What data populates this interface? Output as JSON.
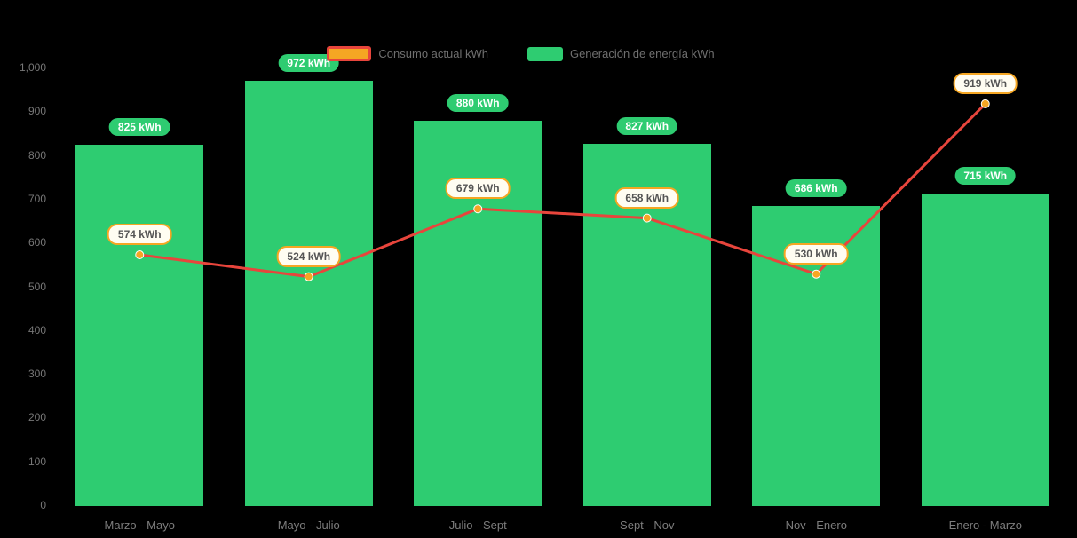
{
  "chart_data": {
    "type": "bar+line",
    "title": "",
    "categories": [
      "Marzo - Mayo",
      "Mayo - Julio",
      "Julio - Sept",
      "Sept - Nov",
      "Nov - Enero",
      "Enero - Marzo"
    ],
    "series": [
      {
        "name": "Consumo actual kWh",
        "type": "line",
        "values": [
          574,
          524,
          679,
          658,
          530,
          919
        ],
        "color": "#e8453c",
        "marker_color": "#f5a623",
        "label_suffix": " kWh"
      },
      {
        "name": "Generación de energía kWh",
        "type": "bar",
        "values": [
          825,
          972,
          880,
          827,
          686,
          715
        ],
        "color": "#2ecc71",
        "label_suffix": " kWh"
      }
    ],
    "ylim": [
      0,
      1000
    ],
    "yticks": [
      0,
      100,
      200,
      300,
      400,
      500,
      600,
      700,
      800,
      900,
      1000
    ],
    "ytick_labels": [
      "0",
      "100",
      "200",
      "300",
      "400",
      "500",
      "600",
      "700",
      "800",
      "900",
      "1,000"
    ],
    "grid": false,
    "legend_position": "top",
    "background_color": "#000000"
  },
  "colors": {
    "bar": "#2ecc71",
    "line": "#e8453c",
    "marker": "#f5a623",
    "axis_text": "#777777",
    "background": "#000000"
  }
}
